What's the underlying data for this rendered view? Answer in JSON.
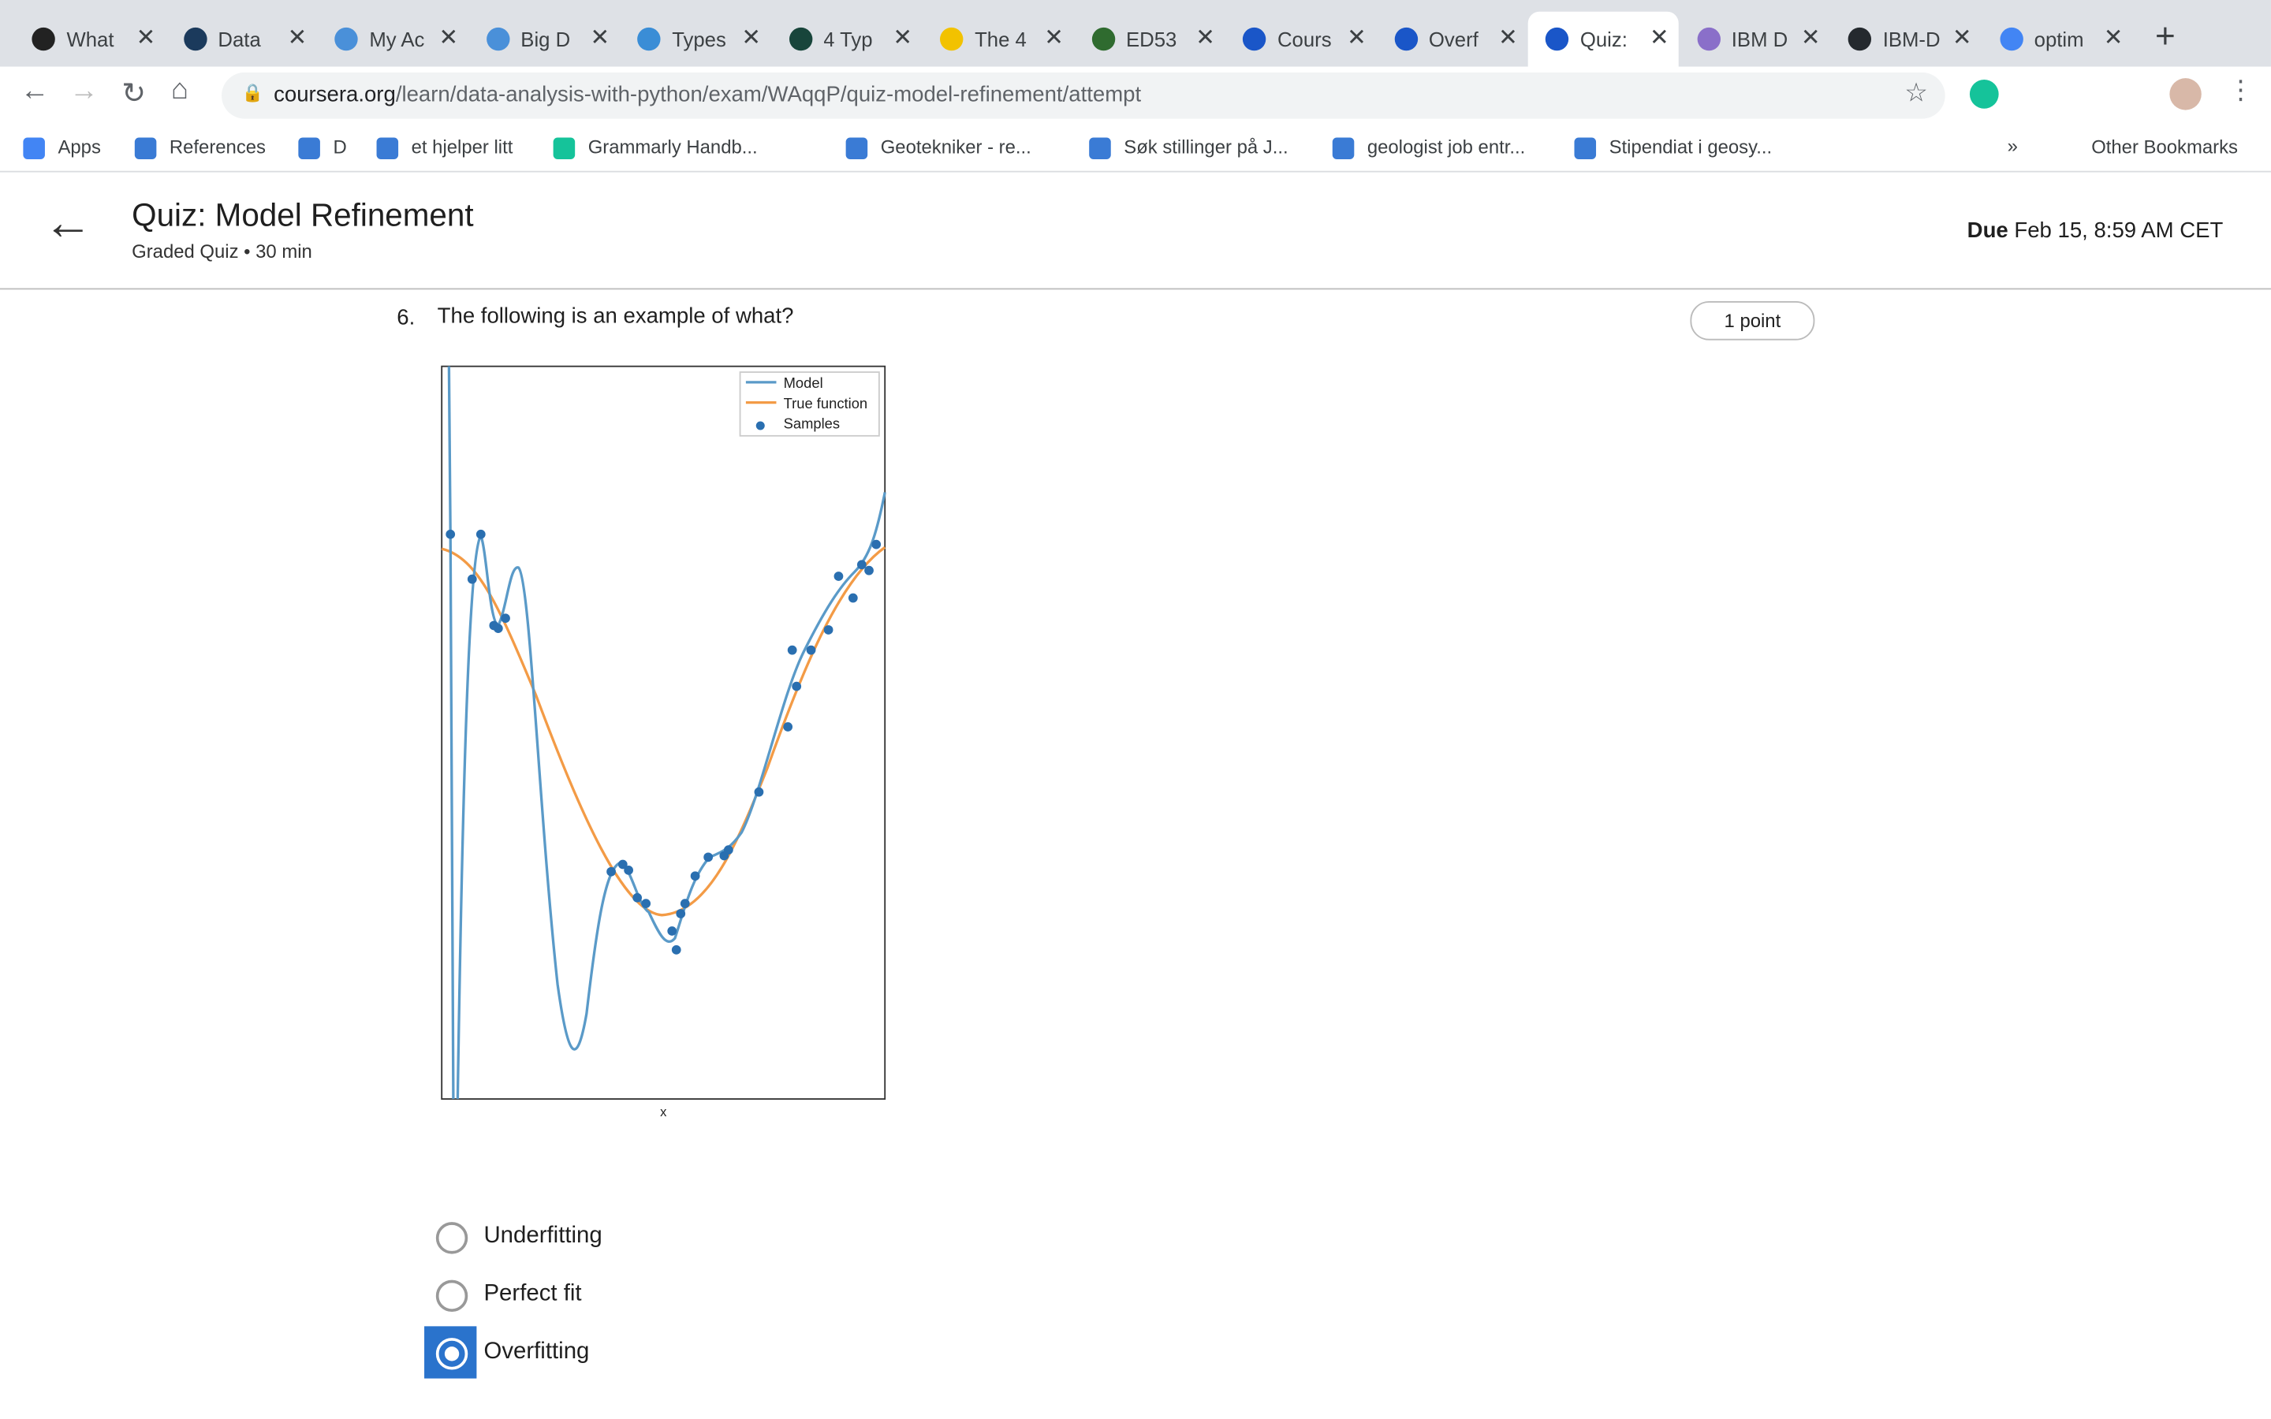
{
  "browser": {
    "tabs": [
      "What",
      "Data",
      "My Ac",
      "Big D",
      "Types",
      "4 Typ",
      "The 4",
      "ED53",
      "Cours",
      "Overf",
      "Quiz:",
      "IBM D",
      "IBM-D",
      "optim"
    ],
    "url_host": "coursera.org",
    "url_path": "/learn/data-analysis-with-python/exam/WAqqP/quiz-model-refinement/attempt",
    "bookmarks": [
      "Apps",
      "References",
      "D",
      "et hjelper litt",
      "Grammarly Handb...",
      "Geotekniker - re...",
      "Søk stillinger på J...",
      "geologist job entr...",
      "Stipendiat i geosy..."
    ],
    "more": "»",
    "other_bookmarks": "Other Bookmarks"
  },
  "header": {
    "title": "Quiz: Model Refinement",
    "subtitle": "Graded Quiz • 30 min",
    "due_label": "Due",
    "due_date": "Feb 15, 8:59 AM CET"
  },
  "question": {
    "number": "6.",
    "text": "The following is an example of what?",
    "points": "1 point",
    "figure": {
      "legend": [
        "Model",
        "True function",
        "Samples"
      ],
      "x_label": "x"
    },
    "options": [
      "Underfitting",
      "Perfect fit",
      "Overfitting"
    ],
    "selected": 2
  }
}
